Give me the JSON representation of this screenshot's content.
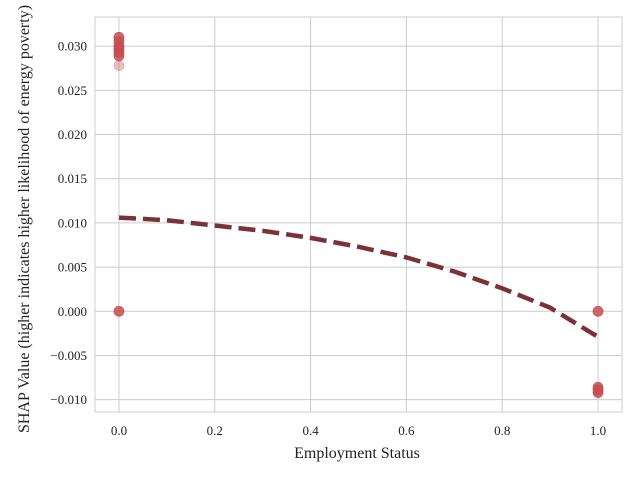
{
  "chart_data": {
    "type": "scatter",
    "xlabel": "Employment Status",
    "ylabel": "SHAP Value (higher indicates higher likelihood of energy poverty)",
    "xlim": [
      -0.05,
      1.05
    ],
    "ylim": [
      -0.0114,
      0.0333
    ],
    "x_ticks": [
      0.0,
      0.2,
      0.4,
      0.6,
      0.8,
      1.0
    ],
    "x_tick_labels": [
      "0.0",
      "0.2",
      "0.4",
      "0.6",
      "0.8",
      "1.0"
    ],
    "y_ticks": [
      -0.01,
      -0.005,
      0.0,
      0.005,
      0.01,
      0.015,
      0.02,
      0.025,
      0.03
    ],
    "y_tick_labels": [
      "−0.010",
      "−0.005",
      "0.000",
      "0.005",
      "0.010",
      "0.015",
      "0.020",
      "0.025",
      "0.030"
    ],
    "grid": true,
    "series": [
      {
        "kind": "points",
        "color": "#c44e52",
        "points": [
          {
            "x": 0.0,
            "y": 0.031
          },
          {
            "x": 0.0,
            "y": 0.0305
          },
          {
            "x": 0.0,
            "y": 0.03
          },
          {
            "x": 0.0,
            "y": 0.0297
          },
          {
            "x": 0.0,
            "y": 0.0293
          },
          {
            "x": 0.0,
            "y": 0.0289
          },
          {
            "x": 0.0,
            "y": 0.0278,
            "alpha": 0.35
          },
          {
            "x": 0.0,
            "y": 0.0
          },
          {
            "x": 1.0,
            "y": 0.0
          },
          {
            "x": 1.0,
            "y": -0.0086
          },
          {
            "x": 1.0,
            "y": -0.0089
          },
          {
            "x": 1.0,
            "y": -0.0092
          }
        ]
      },
      {
        "kind": "trend",
        "style": "dashed",
        "color": "#7b3138",
        "x": [
          0.0,
          0.1,
          0.2,
          0.3,
          0.4,
          0.5,
          0.6,
          0.7,
          0.8,
          0.9,
          1.0
        ],
        "y": [
          0.0106,
          0.0103,
          0.0097,
          0.0091,
          0.0083,
          0.0073,
          0.0061,
          0.0045,
          0.0026,
          0.0004,
          -0.0029
        ]
      }
    ]
  }
}
